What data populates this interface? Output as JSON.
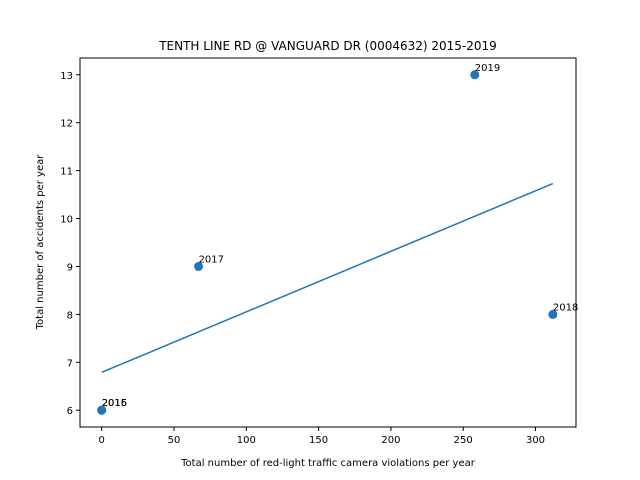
{
  "chart_data": {
    "type": "scatter",
    "title": "TENTH LINE RD @ VANGUARD DR (0004632) 2015-2019",
    "xlabel": "Total number of red-light traffic camera violations per year",
    "ylabel": "Total number of accidents per year",
    "xlim": [
      -15,
      328
    ],
    "ylim": [
      5.65,
      13.35
    ],
    "xticks": [
      0,
      50,
      100,
      150,
      200,
      250,
      300
    ],
    "yticks": [
      6,
      7,
      8,
      9,
      10,
      11,
      12,
      13
    ],
    "grid": false,
    "points": [
      {
        "label": "2015",
        "x": 0,
        "y": 6
      },
      {
        "label": "2016",
        "x": 0,
        "y": 6
      },
      {
        "label": "2017",
        "x": 67,
        "y": 9
      },
      {
        "label": "2018",
        "x": 312,
        "y": 8
      },
      {
        "label": "2019",
        "x": 258,
        "y": 13
      }
    ],
    "trendline": {
      "x": [
        0,
        312
      ],
      "y": [
        6.79,
        10.73
      ]
    },
    "colors": {
      "points": "#1f77b4",
      "line": "#1f77b4"
    }
  }
}
